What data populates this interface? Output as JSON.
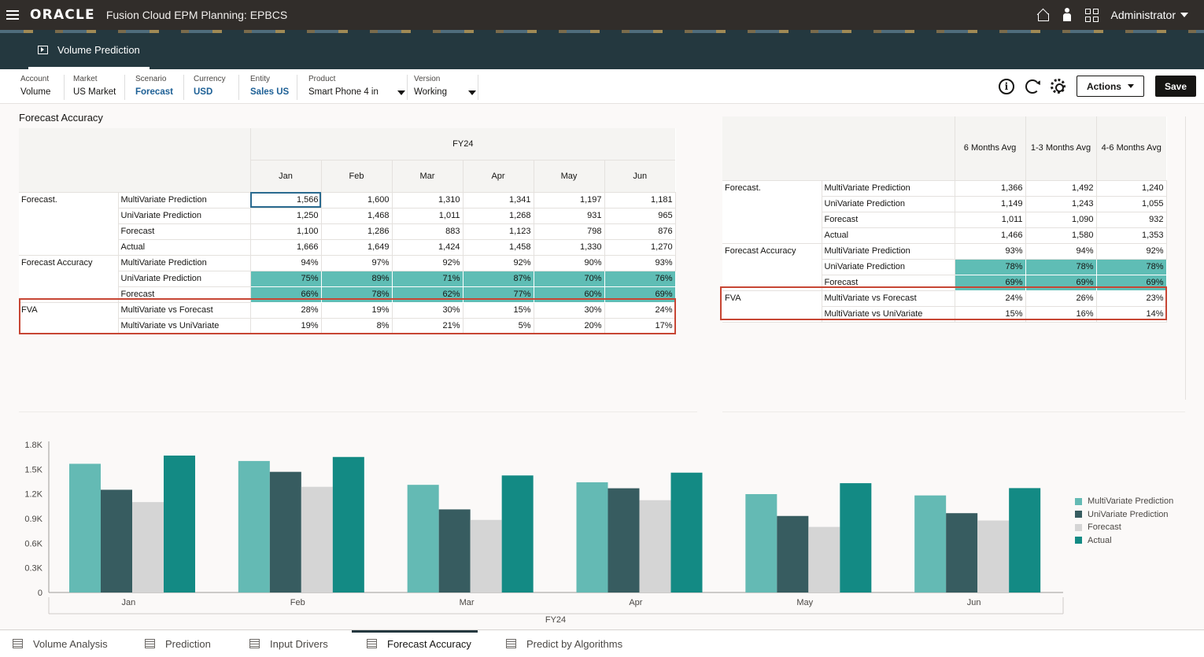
{
  "header": {
    "brand": "ORACLE",
    "app_title": "Fusion Cloud EPM Planning: EPBCS",
    "user": "Administrator",
    "icons": [
      "menu-icon",
      "home-icon",
      "accessibility-icon",
      "navigator-grid-icon"
    ]
  },
  "tab": {
    "label": "Volume Prediction",
    "icon": "presentation-icon"
  },
  "pov": [
    {
      "label": "Account",
      "value": "Volume",
      "link": false,
      "dropdown": false
    },
    {
      "label": "Market",
      "value": "US Market",
      "link": false,
      "dropdown": false
    },
    {
      "label": "Scenario",
      "value": "Forecast",
      "link": true,
      "dropdown": false
    },
    {
      "label": "Currency",
      "value": "USD",
      "link": true,
      "dropdown": false
    },
    {
      "label": "Entity",
      "value": "Sales US",
      "link": true,
      "dropdown": false
    },
    {
      "label": "Product",
      "value": "Smart Phone 4 in",
      "link": false,
      "dropdown": true
    },
    {
      "label": "Version",
      "value": "Working",
      "link": false,
      "dropdown": true
    }
  ],
  "toolbar": {
    "actions": "Actions",
    "save": "Save"
  },
  "section_title": "Forecast Accuracy",
  "left_grid": {
    "year": "FY24",
    "columns": [
      "Jan",
      "Feb",
      "Mar",
      "Apr",
      "May",
      "Jun"
    ],
    "rows": [
      {
        "group": "Forecast.",
        "label": "MultiVariate Prediction",
        "values": [
          "1,566",
          "1,600",
          "1,310",
          "1,341",
          "1,197",
          "1,181"
        ],
        "highlight": false
      },
      {
        "group": "",
        "label": "UniVariate Prediction",
        "values": [
          "1,250",
          "1,468",
          "1,011",
          "1,268",
          "931",
          "965"
        ],
        "highlight": false
      },
      {
        "group": "",
        "label": "Forecast",
        "values": [
          "1,100",
          "1,286",
          "883",
          "1,123",
          "798",
          "876"
        ],
        "highlight": false
      },
      {
        "group": "",
        "label": "Actual",
        "values": [
          "1,666",
          "1,649",
          "1,424",
          "1,458",
          "1,330",
          "1,270"
        ],
        "highlight": false
      },
      {
        "group": "Forecast Accuracy",
        "label": "MultiVariate Prediction",
        "values": [
          "94%",
          "97%",
          "92%",
          "92%",
          "90%",
          "93%"
        ],
        "highlight": false
      },
      {
        "group": "",
        "label": "UniVariate Prediction",
        "values": [
          "75%",
          "89%",
          "71%",
          "87%",
          "70%",
          "76%"
        ],
        "highlight": true
      },
      {
        "group": "",
        "label": "Forecast",
        "values": [
          "66%",
          "78%",
          "62%",
          "77%",
          "60%",
          "69%"
        ],
        "highlight": true
      },
      {
        "group": "FVA",
        "label": "MultiVariate vs Forecast",
        "values": [
          "28%",
          "19%",
          "30%",
          "15%",
          "30%",
          "24%"
        ],
        "highlight": false
      },
      {
        "group": "",
        "label": "MultiVariate vs UniVariate",
        "values": [
          "19%",
          "8%",
          "21%",
          "5%",
          "20%",
          "17%"
        ],
        "highlight": false
      }
    ]
  },
  "right_grid": {
    "columns": [
      "6 Months Avg",
      "1-3 Months Avg",
      "4-6 Months Avg"
    ],
    "rows": [
      {
        "group": "Forecast.",
        "label": "MultiVariate Prediction",
        "values": [
          "1,366",
          "1,492",
          "1,240"
        ],
        "highlight": false
      },
      {
        "group": "",
        "label": "UniVariate Prediction",
        "values": [
          "1,149",
          "1,243",
          "1,055"
        ],
        "highlight": false
      },
      {
        "group": "",
        "label": "Forecast",
        "values": [
          "1,011",
          "1,090",
          "932"
        ],
        "highlight": false
      },
      {
        "group": "",
        "label": "Actual",
        "values": [
          "1,466",
          "1,580",
          "1,353"
        ],
        "highlight": false
      },
      {
        "group": "Forecast Accuracy",
        "label": "MultiVariate Prediction",
        "values": [
          "93%",
          "94%",
          "92%"
        ],
        "highlight": false
      },
      {
        "group": "",
        "label": "UniVariate Prediction",
        "values": [
          "78%",
          "78%",
          "78%"
        ],
        "highlight": true
      },
      {
        "group": "",
        "label": "Forecast",
        "values": [
          "69%",
          "69%",
          "69%"
        ],
        "highlight": true
      },
      {
        "group": "FVA",
        "label": "MultiVariate vs Forecast",
        "values": [
          "24%",
          "26%",
          "23%"
        ],
        "highlight": false
      },
      {
        "group": "",
        "label": "MultiVariate vs UniVariate",
        "values": [
          "15%",
          "16%",
          "14%"
        ],
        "highlight": false
      }
    ]
  },
  "chart_data": {
    "type": "bar",
    "categories": [
      "Jan",
      "Feb",
      "Mar",
      "Apr",
      "May",
      "Jun"
    ],
    "xlabel": "FY24",
    "ylim": [
      0,
      1800
    ],
    "y_ticks": [
      "0",
      "0.3K",
      "0.6K",
      "0.9K",
      "1.2K",
      "1.5K",
      "1.8K"
    ],
    "legend_position": "right",
    "series": [
      {
        "name": "MultiVariate Prediction",
        "color": "#64bab4",
        "values": [
          1566,
          1600,
          1310,
          1341,
          1197,
          1181
        ]
      },
      {
        "name": "UniVariate Prediction",
        "color": "#375c60",
        "values": [
          1250,
          1468,
          1011,
          1268,
          931,
          965
        ]
      },
      {
        "name": "Forecast",
        "color": "#d5d5d5",
        "values": [
          1100,
          1286,
          883,
          1123,
          798,
          876
        ]
      },
      {
        "name": "Actual",
        "color": "#138a84",
        "values": [
          1666,
          1649,
          1424,
          1458,
          1330,
          1270
        ]
      }
    ]
  },
  "bottom_tabs": [
    {
      "label": "Volume Analysis",
      "active": false
    },
    {
      "label": "Prediction",
      "active": false
    },
    {
      "label": "Input Drivers",
      "active": false
    },
    {
      "label": "Forecast Accuracy",
      "active": true
    },
    {
      "label": "Predict by Algorithms",
      "active": false
    }
  ]
}
